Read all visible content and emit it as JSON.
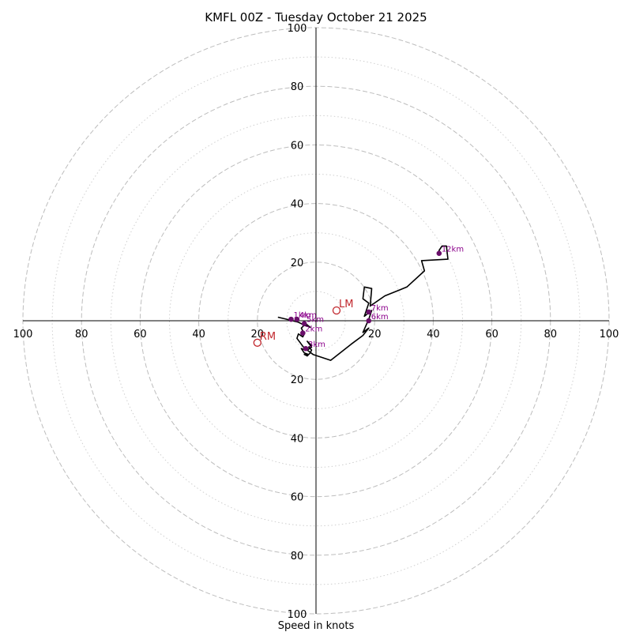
{
  "chart_data": {
    "type": "hodograph",
    "title": "KMFL 00Z - Tuesday October 21 2025",
    "xlabel": "Speed in knots",
    "units": "knots",
    "range": [
      -100,
      100
    ],
    "ring_major": [
      20,
      40,
      60,
      80,
      100
    ],
    "ring_minor": [
      10,
      30,
      50,
      70,
      90
    ],
    "x_ticks": [
      {
        "value": -100,
        "label": "100"
      },
      {
        "value": -80,
        "label": "80"
      },
      {
        "value": -60,
        "label": "60"
      },
      {
        "value": -40,
        "label": "40"
      },
      {
        "value": -20,
        "label": "20"
      },
      {
        "value": 20,
        "label": "20"
      },
      {
        "value": 40,
        "label": "40"
      },
      {
        "value": 60,
        "label": "60"
      },
      {
        "value": 80,
        "label": "80"
      },
      {
        "value": 100,
        "label": "100"
      }
    ],
    "y_ticks": [
      {
        "value": 100,
        "label": "100"
      },
      {
        "value": 80,
        "label": "80"
      },
      {
        "value": 60,
        "label": "60"
      },
      {
        "value": 40,
        "label": "40"
      },
      {
        "value": 20,
        "label": "20"
      },
      {
        "value": -20,
        "label": "20"
      },
      {
        "value": -40,
        "label": "40"
      },
      {
        "value": -60,
        "label": "60"
      },
      {
        "value": -80,
        "label": "80"
      },
      {
        "value": -100,
        "label": "100"
      }
    ],
    "trace": [
      [
        -13,
        1.2
      ],
      [
        -10,
        0.5
      ],
      [
        -6,
        -0.5
      ],
      [
        -4,
        -1.5
      ],
      [
        -2,
        -2.2
      ],
      [
        -3.5,
        -1
      ],
      [
        -5,
        -2.5
      ],
      [
        -4,
        -4.5
      ],
      [
        -4.5,
        -5.5
      ],
      [
        -6,
        -4.5
      ],
      [
        -6.5,
        -6
      ],
      [
        -5,
        -8
      ],
      [
        -3.5,
        -10
      ],
      [
        -5,
        -9.5
      ],
      [
        -4,
        -11
      ],
      [
        -2.5,
        -11.5
      ],
      [
        -4,
        -11.5
      ],
      [
        -3,
        -12
      ],
      [
        -2,
        -11
      ],
      [
        -1.5,
        -10
      ],
      [
        -2.5,
        -9
      ],
      [
        -1.5,
        -8.5
      ],
      [
        -3,
        -7
      ],
      [
        -1.5,
        -9
      ],
      [
        -3,
        -10
      ],
      [
        -1,
        -11.5
      ],
      [
        5,
        -13.5
      ],
      [
        12,
        -8
      ],
      [
        16,
        -5
      ],
      [
        18,
        -2.5
      ],
      [
        16,
        -4
      ],
      [
        18,
        0.5
      ],
      [
        19,
        3.5
      ],
      [
        16.5,
        1.5
      ],
      [
        18,
        6
      ],
      [
        16,
        7.5
      ],
      [
        16.5,
        11.5
      ],
      [
        19,
        11
      ],
      [
        18.5,
        5
      ],
      [
        23.5,
        8.5
      ],
      [
        31,
        11.5
      ],
      [
        37,
        17
      ],
      [
        36,
        20.5
      ],
      [
        45,
        21
      ],
      [
        44.5,
        25.5
      ],
      [
        43,
        25.5
      ],
      [
        42,
        24
      ],
      [
        42,
        23
      ]
    ],
    "height_markers": [
      {
        "label": "1km",
        "u": -8.5,
        "v": 0.5
      },
      {
        "label": "2km",
        "u": -4.5,
        "v": -4.2
      },
      {
        "label": "3km",
        "u": -3.5,
        "v": -9.5
      },
      {
        "label": "4km",
        "u": -6.5,
        "v": 0.5
      },
      {
        "label": "5km",
        "u": -4,
        "v": -1
      },
      {
        "label": "6km",
        "u": 18,
        "v": 0
      },
      {
        "label": "7km",
        "u": 18,
        "v": 3
      },
      {
        "label": "12km",
        "u": 42,
        "v": 23
      }
    ],
    "storm_motion": [
      {
        "label": "RM",
        "u": -20,
        "v": -7.5
      },
      {
        "label": "LM",
        "u": 7,
        "v": 3.5
      }
    ]
  }
}
